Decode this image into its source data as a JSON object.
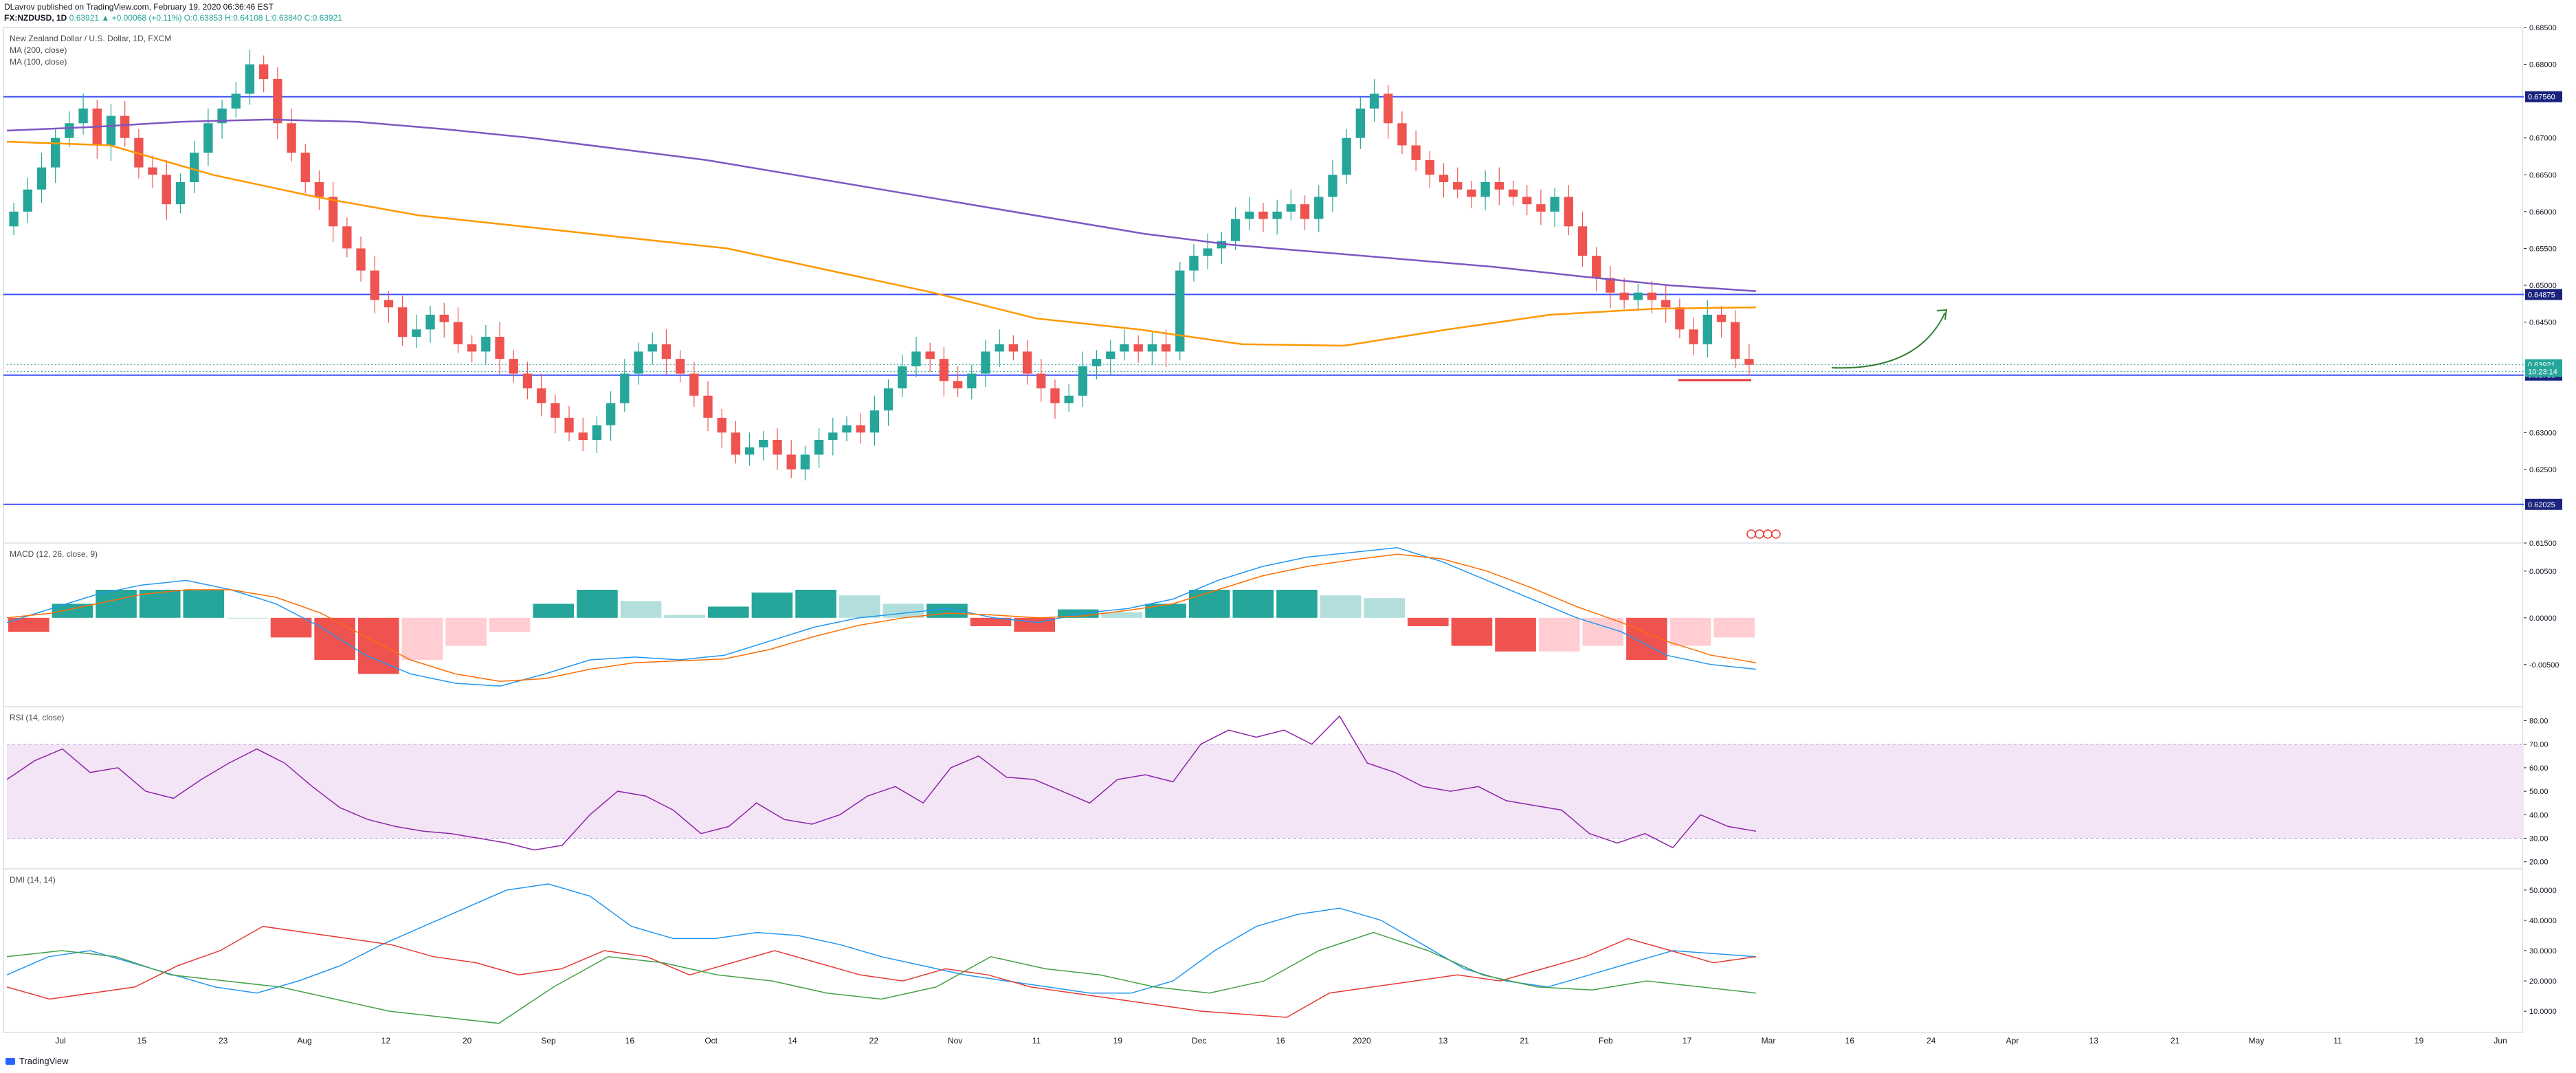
{
  "header": {
    "published": "DLavrov published on TradingView.com, February 19, 2020 06:36:46 EST",
    "symbol": "FX:NZDUSD, 1D",
    "values": "0.63921 ▲ +0.00068 (+0.11%) O:0.63853 H:0.64108 L:0.63840 C:0.63921"
  },
  "footer": {
    "brand": "TradingView"
  },
  "chart_data": {
    "type": "candlestick",
    "title": "New Zealand Dollar / U.S. Dollar, 1D, FXCM",
    "legend": [
      "MA (200, close)",
      "MA (100, close)"
    ],
    "colors": {
      "up": "#26a69a",
      "down": "#ef5350",
      "ma200": "#7e57c2",
      "ma100": "#ff9800",
      "hline": "#3f51f5",
      "macd": "#2196f3",
      "signal": "#ff6d00",
      "rsi": "#8e24aa",
      "dmi_plus": "#2196f3",
      "dmi_minus": "#e53935",
      "adx": "#43a047"
    },
    "x_labels": [
      "Jul",
      "15",
      "23",
      "Aug",
      "12",
      "20",
      "Sep",
      "16",
      "Oct",
      "14",
      "22",
      "Nov",
      "11",
      "19",
      "Dec",
      "16",
      "2020",
      "13",
      "21",
      "Feb",
      "17",
      "Mar",
      "16",
      "24",
      "Apr",
      "13",
      "21",
      "May",
      "11",
      "19",
      "Jun"
    ],
    "price_axis": {
      "ylim": [
        0.615,
        0.685
      ],
      "ticks": [
        "0.68500",
        "0.68000",
        "0.67000",
        "0.66500",
        "0.66000",
        "0.65500",
        "0.65000",
        "0.64500",
        "0.63000",
        "0.62500",
        "0.61500"
      ]
    },
    "horizontal_levels": [
      {
        "label": "0.67560",
        "value": 0.6756
      },
      {
        "label": "0.64875",
        "value": 0.64875
      },
      {
        "label": "0.63780",
        "value": 0.6378
      },
      {
        "label": "0.62025",
        "value": 0.62025
      }
    ],
    "price_tags": [
      {
        "label": "0.63921",
        "value": 0.63921,
        "color": "#26a69a"
      },
      {
        "label": "10:23:14",
        "value": 0.6383,
        "color": "#26a69a"
      }
    ],
    "candles_close": [
      0.66,
      0.663,
      0.666,
      0.67,
      0.672,
      0.674,
      0.669,
      0.673,
      0.67,
      0.666,
      0.665,
      0.661,
      0.664,
      0.668,
      0.672,
      0.674,
      0.676,
      0.68,
      0.678,
      0.672,
      0.668,
      0.664,
      0.662,
      0.658,
      0.655,
      0.652,
      0.648,
      0.647,
      0.643,
      0.644,
      0.646,
      0.645,
      0.642,
      0.641,
      0.643,
      0.64,
      0.638,
      0.636,
      0.634,
      0.632,
      0.63,
      0.629,
      0.631,
      0.634,
      0.638,
      0.641,
      0.642,
      0.64,
      0.638,
      0.635,
      0.632,
      0.63,
      0.627,
      0.628,
      0.629,
      0.627,
      0.625,
      0.627,
      0.629,
      0.63,
      0.631,
      0.63,
      0.633,
      0.636,
      0.639,
      0.641,
      0.64,
      0.637,
      0.636,
      0.638,
      0.641,
      0.642,
      0.641,
      0.638,
      0.636,
      0.634,
      0.635,
      0.639,
      0.64,
      0.641,
      0.642,
      0.641,
      0.642,
      0.641,
      0.652,
      0.654,
      0.655,
      0.656,
      0.659,
      0.66,
      0.659,
      0.66,
      0.661,
      0.659,
      0.662,
      0.665,
      0.67,
      0.674,
      0.676,
      0.672,
      0.669,
      0.667,
      0.665,
      0.664,
      0.663,
      0.662,
      0.664,
      0.663,
      0.662,
      0.661,
      0.66,
      0.662,
      0.658,
      0.654,
      0.651,
      0.649,
      0.648,
      0.649,
      0.648,
      0.647,
      0.644,
      0.642,
      0.646,
      0.645,
      0.64,
      0.6392
    ],
    "ma200": [
      0.671,
      0.6715,
      0.6722,
      0.6725,
      0.6722,
      0.6712,
      0.67,
      0.6685,
      0.667,
      0.665,
      0.663,
      0.661,
      0.659,
      0.657,
      0.6555,
      0.6545,
      0.6535,
      0.6525,
      0.6512,
      0.65,
      0.6492
    ],
    "ma100": [
      0.6695,
      0.669,
      0.665,
      0.662,
      0.6595,
      0.658,
      0.6565,
      0.655,
      0.652,
      0.649,
      0.6455,
      0.644,
      0.642,
      0.6418,
      0.644,
      0.646,
      0.6468,
      0.647
    ],
    "panes": [
      {
        "name": "MACD (12, 26, close, 9)",
        "ticks": [
          "0.00500",
          "0.00000",
          "-0.00500"
        ],
        "ylim": [
          -0.0095,
          0.008
        ]
      },
      {
        "name": "RSI (14, close)",
        "ticks": [
          "80.00",
          "70.00",
          "60.00",
          "50.00",
          "40.00",
          "30.00",
          "20.00"
        ],
        "ylim": [
          17,
          86
        ]
      },
      {
        "name": "DMI (14, 14)",
        "ticks": [
          "50.0000",
          "40.0000",
          "30.0000",
          "20.0000",
          "10.0000"
        ],
        "ylim": [
          3,
          57
        ]
      }
    ],
    "macd": [
      -0.0005,
      0.001,
      0.0025,
      0.0035,
      0.004,
      0.003,
      0.0015,
      -0.001,
      -0.004,
      -0.006,
      -0.007,
      -0.0073,
      -0.006,
      -0.0045,
      -0.0042,
      -0.0045,
      -0.004,
      -0.0025,
      -0.001,
      0.0,
      0.0005,
      0.001,
      0.0,
      -0.0005,
      0.0005,
      0.001,
      0.002,
      0.004,
      0.0055,
      0.0065,
      0.007,
      0.0075,
      0.006,
      0.004,
      0.002,
      0.0,
      -0.0015,
      -0.004,
      -0.005,
      -0.0055
    ],
    "macd_signal": [
      0.0,
      0.0005,
      0.0015,
      0.0025,
      0.003,
      0.003,
      0.0022,
      0.0005,
      -0.002,
      -0.0045,
      -0.006,
      -0.0068,
      -0.0065,
      -0.0055,
      -0.0048,
      -0.0046,
      -0.0044,
      -0.0034,
      -0.002,
      -0.0008,
      0.0,
      0.0005,
      0.0003,
      0.0,
      0.0002,
      0.0008,
      0.0015,
      0.003,
      0.0045,
      0.0055,
      0.0062,
      0.0068,
      0.0063,
      0.005,
      0.0032,
      0.0012,
      -0.0005,
      -0.0025,
      -0.004,
      -0.0048
    ],
    "rsi": [
      55,
      63,
      68,
      58,
      60,
      50,
      47,
      55,
      62,
      68,
      62,
      52,
      43,
      38,
      35,
      33,
      32,
      30,
      28,
      25,
      27,
      40,
      50,
      48,
      42,
      32,
      35,
      45,
      38,
      36,
      40,
      48,
      52,
      45,
      60,
      65,
      56,
      55,
      50,
      45,
      55,
      57,
      54,
      70,
      76,
      73,
      76,
      70,
      82,
      62,
      58,
      52,
      50,
      52,
      46,
      44,
      42,
      32,
      28,
      32,
      26,
      40,
      35,
      33
    ],
    "dmi_plus": [
      22,
      28,
      30,
      26,
      22,
      18,
      16,
      20,
      25,
      32,
      38,
      44,
      50,
      52,
      48,
      38,
      34,
      34,
      36,
      35,
      32,
      28,
      25,
      22,
      20,
      18,
      16,
      16,
      20,
      30,
      38,
      42,
      44,
      40,
      32,
      24,
      20,
      18,
      22,
      26,
      30,
      29,
      28
    ],
    "dmi_minus": [
      18,
      14,
      16,
      18,
      25,
      30,
      38,
      36,
      34,
      32,
      28,
      26,
      22,
      24,
      30,
      28,
      22,
      26,
      30,
      26,
      22,
      20,
      24,
      22,
      18,
      16,
      14,
      12,
      10,
      9,
      8,
      16,
      18,
      20,
      22,
      20,
      24,
      28,
      34,
      30,
      26,
      28
    ],
    "adx": [
      28,
      30,
      28,
      22,
      20,
      18,
      14,
      10,
      8,
      6,
      18,
      28,
      26,
      22,
      20,
      16,
      14,
      18,
      28,
      24,
      22,
      18,
      16,
      20,
      30,
      36,
      30,
      22,
      18,
      17,
      20,
      18,
      16
    ]
  }
}
